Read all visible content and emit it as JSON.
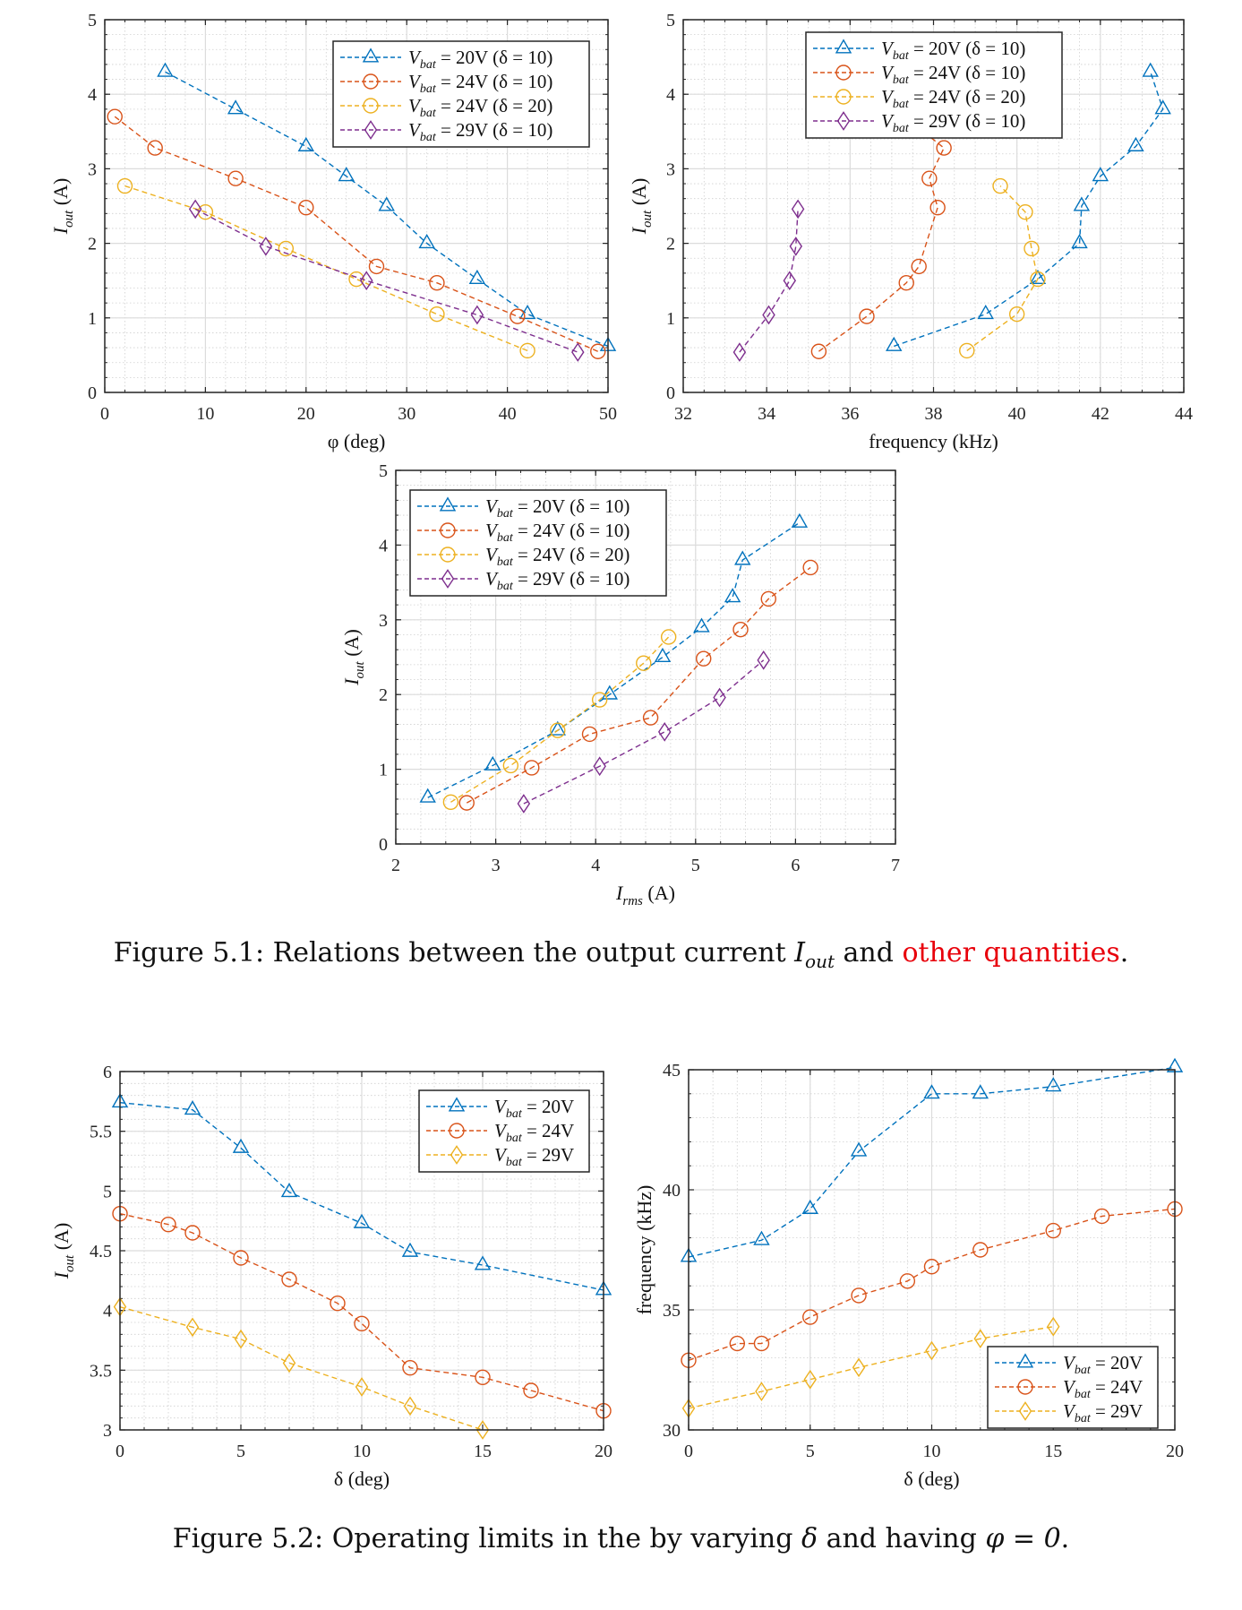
{
  "colors": {
    "blue": "#0072BD",
    "orange": "#D95319",
    "yellow": "#EDB120",
    "purple": "#7E2F8E",
    "frame": "#262626",
    "grid_major": "#dcdcdc",
    "grid_minor": "#cfcfcf",
    "caption_highlight": "#e8000b"
  },
  "figures": [
    {
      "caption_prefix": "Figure 5.1: Relations between the output current ",
      "caption_math": "I",
      "caption_math_sub": "out",
      "caption_mid": " and ",
      "caption_highlight": "other quantities",
      "caption_suffix": "."
    },
    {
      "caption_prefix": "Figure 5.2: Operating limits in the by varying ",
      "caption_math": "δ",
      "caption_mid": " and having ",
      "caption_math2": "φ = 0",
      "caption_suffix": "."
    }
  ],
  "chart_data": [
    {
      "id": "iout-vs-phi",
      "type": "line",
      "figure": "5.1",
      "xlabel": "φ (deg)",
      "ylabel": "I_out (A)",
      "xlim": [
        0,
        50
      ],
      "ylim": [
        0,
        5
      ],
      "xticks": [
        0,
        10,
        20,
        30,
        40,
        50
      ],
      "yticks": [
        0,
        1,
        2,
        3,
        4,
        5
      ],
      "grid": true,
      "legend_position": "top-right",
      "series": [
        {
          "name": "V_bat = 20V (δ = 10)",
          "color_key": "blue",
          "marker": "triangle",
          "x": [
            6,
            13,
            20,
            24,
            28,
            32,
            37,
            42,
            50
          ],
          "y": [
            4.3,
            3.8,
            3.3,
            2.9,
            2.5,
            2.0,
            1.52,
            1.05,
            0.62
          ]
        },
        {
          "name": "V_bat = 24V (δ = 10)",
          "color_key": "orange",
          "marker": "circle",
          "x": [
            1,
            5,
            13,
            20,
            27,
            33,
            41,
            49
          ],
          "y": [
            3.7,
            3.28,
            2.87,
            2.48,
            1.69,
            1.47,
            1.02,
            0.55
          ]
        },
        {
          "name": "V_bat = 24V (δ = 20)",
          "color_key": "yellow",
          "marker": "circle",
          "x": [
            2,
            10,
            18,
            25,
            33,
            42
          ],
          "y": [
            2.77,
            2.42,
            1.93,
            1.52,
            1.05,
            0.56
          ]
        },
        {
          "name": "V_bat = 29V (δ = 10)",
          "color_key": "purple",
          "marker": "diamond",
          "x": [
            9,
            16,
            26,
            37,
            47
          ],
          "y": [
            2.46,
            1.96,
            1.5,
            1.04,
            0.54
          ]
        }
      ]
    },
    {
      "id": "iout-vs-frequency",
      "type": "line",
      "figure": "5.1",
      "xlabel": "frequency (kHz)",
      "ylabel": "I_out (A)",
      "xlim": [
        32,
        44
      ],
      "ylim": [
        0,
        5
      ],
      "xticks": [
        32,
        34,
        36,
        38,
        40,
        42,
        44
      ],
      "yticks": [
        0,
        1,
        2,
        3,
        4,
        5
      ],
      "grid": true,
      "legend_position": "top-center",
      "series": [
        {
          "name": "V_bat = 20V (δ = 10)",
          "color_key": "blue",
          "marker": "triangle",
          "x": [
            37.05,
            39.25,
            40.5,
            41.5,
            41.55,
            42.0,
            42.85,
            43.5,
            43.2
          ],
          "y": [
            0.62,
            1.05,
            1.52,
            2.0,
            2.5,
            2.9,
            3.3,
            3.8,
            4.3
          ]
        },
        {
          "name": "V_bat = 24V (δ = 10)",
          "color_key": "orange",
          "marker": "circle",
          "x": [
            35.25,
            36.4,
            37.35,
            37.65,
            38.1,
            37.9,
            38.25,
            37.3
          ],
          "y": [
            0.55,
            1.02,
            1.47,
            1.69,
            2.48,
            2.87,
            3.28,
            3.7
          ]
        },
        {
          "name": "V_bat = 24V (δ = 20)",
          "color_key": "yellow",
          "marker": "circle",
          "x": [
            38.8,
            40.0,
            40.5,
            40.35,
            40.2,
            39.6
          ],
          "y": [
            0.56,
            1.05,
            1.52,
            1.93,
            2.42,
            2.77
          ]
        },
        {
          "name": "V_bat = 29V (δ = 10)",
          "color_key": "purple",
          "marker": "diamond",
          "x": [
            33.35,
            34.05,
            34.55,
            34.7,
            34.75
          ],
          "y": [
            0.54,
            1.04,
            1.5,
            1.96,
            2.46
          ]
        }
      ]
    },
    {
      "id": "iout-vs-irms",
      "type": "line",
      "figure": "5.1",
      "xlabel": "I_rms (A)",
      "ylabel": "I_out (A)",
      "xlim": [
        2,
        7
      ],
      "ylim": [
        0,
        5
      ],
      "xticks": [
        2,
        3,
        4,
        5,
        6,
        7
      ],
      "yticks": [
        0,
        1,
        2,
        3,
        4,
        5
      ],
      "grid": true,
      "legend_position": "top-left",
      "series": [
        {
          "name": "V_bat = 20V (δ = 10)",
          "color_key": "blue",
          "marker": "triangle",
          "x": [
            2.32,
            2.97,
            3.62,
            4.14,
            4.67,
            5.06,
            5.37,
            5.47,
            6.04
          ],
          "y": [
            0.62,
            1.05,
            1.52,
            2.0,
            2.5,
            2.9,
            3.3,
            3.8,
            4.3
          ]
        },
        {
          "name": "V_bat = 24V (δ = 10)",
          "color_key": "orange",
          "marker": "circle",
          "x": [
            2.71,
            3.36,
            3.94,
            4.55,
            5.08,
            5.45,
            5.73,
            6.15
          ],
          "y": [
            0.55,
            1.02,
            1.47,
            1.69,
            2.48,
            2.87,
            3.28,
            3.7
          ]
        },
        {
          "name": "V_bat = 24V (δ = 20)",
          "color_key": "yellow",
          "marker": "circle",
          "x": [
            2.55,
            3.15,
            3.62,
            4.04,
            4.48,
            4.73
          ],
          "y": [
            0.56,
            1.05,
            1.52,
            1.93,
            2.42,
            2.77
          ]
        },
        {
          "name": "V_bat = 29V (δ = 10)",
          "color_key": "purple",
          "marker": "diamond",
          "x": [
            3.28,
            4.04,
            4.69,
            5.24,
            5.68
          ],
          "y": [
            0.54,
            1.04,
            1.5,
            1.96,
            2.46
          ]
        }
      ]
    },
    {
      "id": "iout-vs-delta",
      "type": "line",
      "figure": "5.2",
      "xlabel": "δ (deg)",
      "ylabel": "I_out (A)",
      "xlim": [
        0,
        20
      ],
      "ylim": [
        3,
        6
      ],
      "xticks": [
        0,
        5,
        10,
        15,
        20
      ],
      "yticks": [
        3,
        3.5,
        4,
        4.5,
        5,
        5.5,
        6
      ],
      "grid": true,
      "legend_position": "top-right",
      "series": [
        {
          "name": "V_bat = 20V",
          "color_key": "blue",
          "marker": "triangle",
          "x": [
            0,
            3,
            5,
            7,
            10,
            12,
            15,
            20
          ],
          "y": [
            5.74,
            5.68,
            5.36,
            4.99,
            4.73,
            4.49,
            4.38,
            4.17
          ]
        },
        {
          "name": "V_bat = 24V",
          "color_key": "orange",
          "marker": "circle",
          "x": [
            0,
            2,
            3,
            5,
            7,
            9,
            10,
            12,
            15,
            17,
            20
          ],
          "y": [
            4.81,
            4.72,
            4.65,
            4.44,
            4.26,
            4.06,
            3.89,
            3.52,
            3.44,
            3.33,
            3.16
          ]
        },
        {
          "name": "V_bat = 29V",
          "color_key": "yellow",
          "marker": "diamond",
          "x": [
            0,
            3,
            5,
            7,
            10,
            12,
            15
          ],
          "y": [
            4.03,
            3.86,
            3.76,
            3.56,
            3.36,
            3.2,
            3.0
          ]
        }
      ]
    },
    {
      "id": "frequency-vs-delta",
      "type": "line",
      "figure": "5.2",
      "xlabel": "δ (deg)",
      "ylabel": "frequency (kHz)",
      "xlim": [
        0,
        20
      ],
      "ylim": [
        30,
        45
      ],
      "xticks": [
        0,
        5,
        10,
        15,
        20
      ],
      "yticks": [
        30,
        35,
        40,
        45
      ],
      "grid": true,
      "legend_position": "bottom-right",
      "series": [
        {
          "name": "V_bat = 20V",
          "color_key": "blue",
          "marker": "triangle",
          "x": [
            0,
            3,
            5,
            7,
            10,
            12,
            15,
            20
          ],
          "y": [
            37.2,
            37.9,
            39.2,
            41.6,
            44.0,
            44.0,
            44.3,
            45.1
          ]
        },
        {
          "name": "V_bat = 24V",
          "color_key": "orange",
          "marker": "circle",
          "x": [
            0,
            2,
            3,
            5,
            7,
            9,
            10,
            12,
            15,
            17,
            20
          ],
          "y": [
            32.9,
            33.6,
            33.6,
            34.7,
            35.6,
            36.2,
            36.8,
            37.5,
            38.3,
            38.9,
            39.2
          ]
        },
        {
          "name": "V_bat = 29V",
          "color_key": "yellow",
          "marker": "diamond",
          "x": [
            0,
            3,
            5,
            7,
            10,
            12,
            15
          ],
          "y": [
            30.9,
            31.6,
            32.1,
            32.6,
            33.3,
            33.8,
            34.3
          ]
        }
      ]
    }
  ]
}
